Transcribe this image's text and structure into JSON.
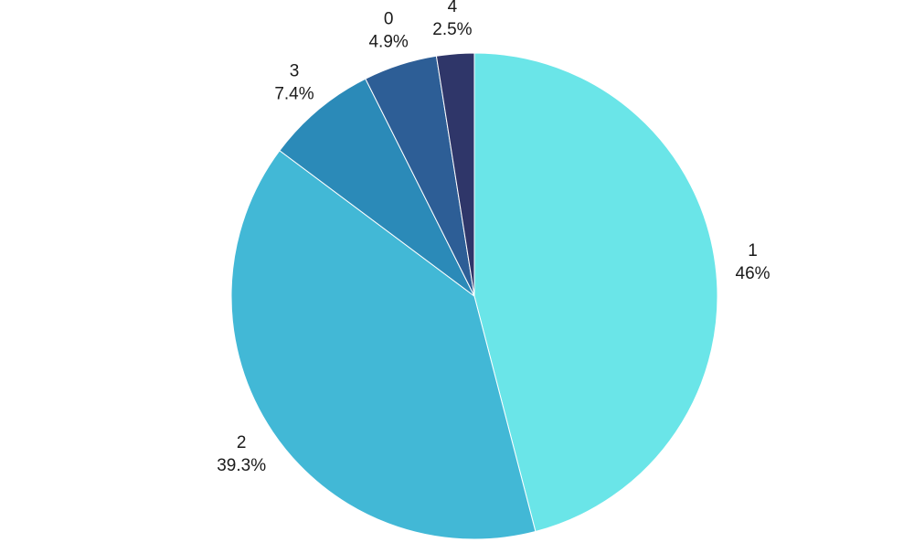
{
  "chart_data": {
    "type": "pie",
    "title": "",
    "legend": "none",
    "labels_shown": [
      "category",
      "percent"
    ],
    "slices": [
      {
        "label": "1",
        "percent_label": "46%",
        "value": 46.0,
        "color": "#6ae5e8"
      },
      {
        "label": "2",
        "percent_label": "39.3%",
        "value": 39.3,
        "color": "#42b8d6"
      },
      {
        "label": "3",
        "percent_label": "7.4%",
        "value": 7.4,
        "color": "#2b8ab8"
      },
      {
        "label": "0",
        "percent_label": "4.9%",
        "value": 4.9,
        "color": "#2d5e96"
      },
      {
        "label": "4",
        "percent_label": "2.5%",
        "value": 2.5,
        "color": "#2f3669"
      }
    ]
  }
}
